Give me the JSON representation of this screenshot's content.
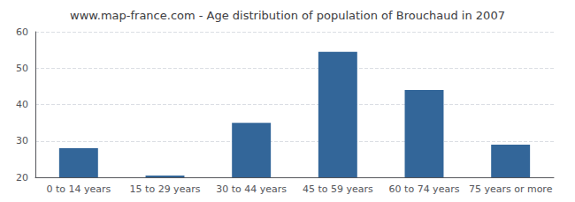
{
  "chart_data": {
    "type": "bar",
    "title": "www.map-france.com - Age distribution of population of Brouchaud in 2007",
    "categories": [
      "0 to 14 years",
      "15 to 29 years",
      "30 to 44 years",
      "45 to 59 years",
      "60 to 74 years",
      "75 years or more"
    ],
    "values": [
      28,
      20.5,
      35,
      54.5,
      44,
      29
    ],
    "color": "#336699",
    "ylim": [
      20,
      60
    ],
    "yticks": [
      20,
      30,
      40,
      50,
      60
    ],
    "grid": true
  }
}
